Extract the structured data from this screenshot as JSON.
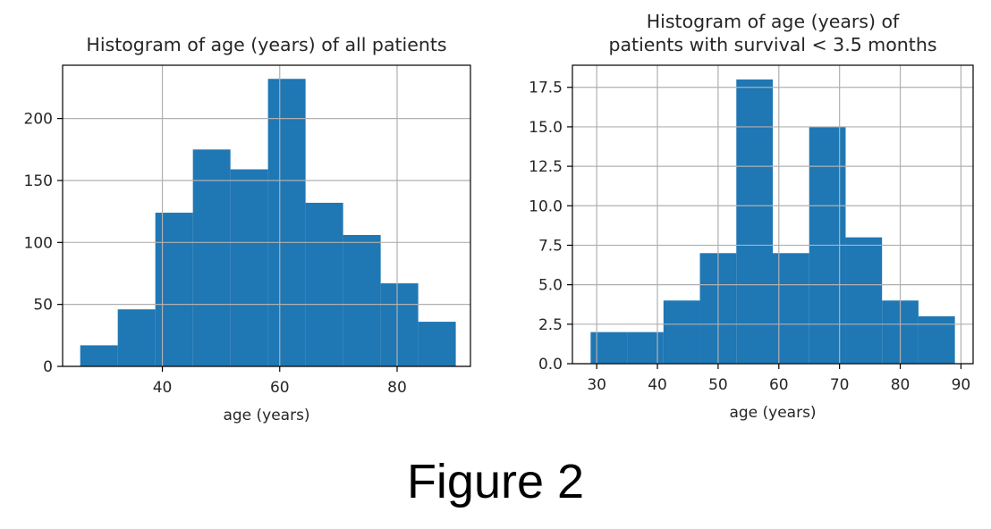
{
  "figure": {
    "caption": "Figure 2"
  },
  "chart_data": [
    {
      "type": "bar",
      "title_lines": [
        "Histogram of age (years) of all patients"
      ],
      "xlabel": "age (years)",
      "ylabel": "",
      "xlim": [
        23,
        92.5
      ],
      "ylim": [
        0,
        243
      ],
      "xticks": [
        40,
        60,
        80
      ],
      "yticks": [
        0,
        50,
        100,
        150,
        200
      ],
      "yticklabels": [
        "0",
        "50",
        "100",
        "150",
        "200"
      ],
      "grid": true,
      "bin_edges": [
        26,
        32.4,
        38.8,
        45.2,
        51.6,
        58,
        64.4,
        70.8,
        77.2,
        83.6,
        90
      ],
      "values": [
        17,
        46,
        124,
        175,
        159,
        232,
        132,
        106,
        67,
        36
      ],
      "color": "#1f77b4"
    },
    {
      "type": "bar",
      "title_lines": [
        "Histogram of age (years) of",
        "patients with survival < 3.5 months"
      ],
      "xlabel": "age (years)",
      "ylabel": "",
      "xlim": [
        26,
        92
      ],
      "ylim": [
        0,
        18.9
      ],
      "xticks": [
        30,
        40,
        50,
        60,
        70,
        80,
        90
      ],
      "yticks": [
        0,
        2.5,
        5,
        7.5,
        10,
        12.5,
        15,
        17.5
      ],
      "yticklabels": [
        "0.0",
        "2.5",
        "5.0",
        "7.5",
        "10.0",
        "12.5",
        "15.0",
        "17.5"
      ],
      "grid": true,
      "bin_edges": [
        29,
        35,
        41,
        47,
        53,
        59,
        65,
        71,
        77,
        83,
        89
      ],
      "values": [
        2,
        2,
        4,
        7,
        18,
        7,
        15,
        8,
        4,
        3
      ],
      "color": "#1f77b4"
    }
  ]
}
